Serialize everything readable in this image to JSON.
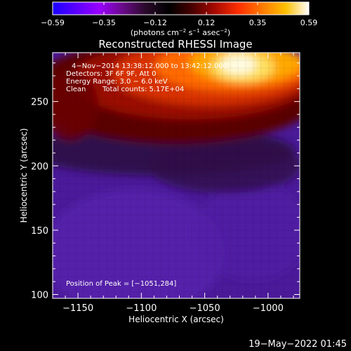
{
  "colorbar": {
    "ticks": [
      "−0.59",
      "−0.35",
      "−0.12",
      "0.12",
      "0.35",
      "0.59"
    ],
    "unit_prefix": "(photons cm",
    "unit_exp1": "−2",
    "unit_mid": " s",
    "unit_exp2": "−1",
    "unit_mid2": " asec",
    "unit_exp3": "−2",
    "unit_suffix": ")",
    "colors": [
      "#1a00ff",
      "#5a00ff",
      "#9a00ff",
      "#6a0a8a",
      "#2a0a2a",
      "#000000",
      "#4a0000",
      "#aa0a00",
      "#ff3000",
      "#ff7a00",
      "#ffc000",
      "#ffffff"
    ]
  },
  "annotations": {
    "line1": "4−Nov−2014 13:38:12.000 to 13:42:12.000",
    "line2": "Detectors: 3F 6F 9F, Att 0",
    "line3": "Energy Range: 3.0 − 6.0 keV",
    "line4_a": "Clean",
    "line4_b": "Total counts: 5.17E+04",
    "peak": "Position of Peak = [−1051,284]"
  },
  "footer": {
    "timestamp": "19−May−2022 01:45"
  },
  "chart_data": {
    "type": "heatmap",
    "title": "Reconstructed RHESSI Image",
    "xlabel": "Heliocentric X (arcsec)",
    "ylabel": "Heliocentric Y (arcsec)",
    "xlim": [
      -1170,
      -975
    ],
    "ylim": [
      97,
      288
    ],
    "x_ticks": [
      -1150,
      -1100,
      -1050,
      -1000
    ],
    "x_tick_labels": [
      "−1150",
      "−1100",
      "−1050",
      "−1000"
    ],
    "y_ticks": [
      100,
      150,
      200,
      250
    ],
    "y_tick_labels": [
      "100",
      "150",
      "200",
      "250"
    ],
    "colorscale_range": [
      -0.59,
      0.59
    ],
    "peak_position": [
      -1051,
      284
    ]
  }
}
